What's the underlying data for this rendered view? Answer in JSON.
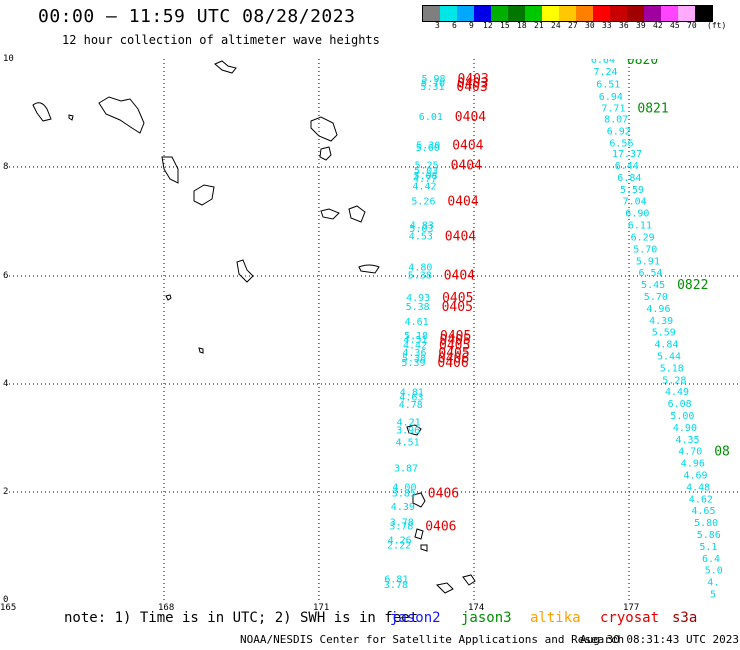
{
  "title": "00:00 – 11:59 UTC 08/28/2023",
  "subtitle": "12 hour collection of altimeter wave heights",
  "colorbar": {
    "unit": "(ft)",
    "labels": [
      "3",
      "6",
      "9",
      "12",
      "15",
      "18",
      "21",
      "24",
      "27",
      "30",
      "33",
      "36",
      "39",
      "42",
      "45",
      "70"
    ],
    "colors": [
      "#7f7f7f",
      "#00e5e5",
      "#00a8ff",
      "#0000e6",
      "#00b000",
      "#007800",
      "#00c800",
      "#ffff00",
      "#ffc800",
      "#ff7f00",
      "#ff0000",
      "#c80000",
      "#a00000",
      "#a000a0",
      "#ff44ff",
      "#ffaaff",
      "#000000"
    ]
  },
  "axes": {
    "y_ticks": [
      "10",
      "8",
      "6",
      "4",
      "2",
      "0"
    ],
    "x_ticks": [
      "165",
      "168",
      "171",
      "174",
      "177"
    ]
  },
  "note": {
    "prefix": "note: 1) Time is in UTC; 2) SWH is in feet",
    "satellites": [
      {
        "name": "jason2",
        "color": "#1515ff"
      },
      {
        "name": "jason3",
        "color": "#009000"
      },
      {
        "name": "altika",
        "color": "#ffa000"
      },
      {
        "name": "cryosat",
        "color": "#e00000"
      },
      {
        "name": "s3a",
        "color": "#a00000"
      }
    ]
  },
  "footer": {
    "credit": "NOAA/NESDIS Center for Satellite Applications and Research",
    "timestamp": "Aug 30 08:31:43 UTC 2023"
  },
  "chart_data": {
    "type": "scatter",
    "x_range": [
      165,
      179
    ],
    "y_range": [
      0,
      10
    ],
    "grid": true,
    "tracks": [
      {
        "satellite": "cryosat",
        "color": "#e00000",
        "points": [
          {
            "lon": 172.85,
            "lat": 9.65,
            "swh": "5.98",
            "time": "0403"
          },
          {
            "lon": 172.84,
            "lat": 9.57,
            "swh": "5.70",
            "time": "0403"
          },
          {
            "lon": 172.83,
            "lat": 9.5,
            "swh": "5.31",
            "time": "0403"
          },
          {
            "lon": 172.8,
            "lat": 8.95,
            "swh": "6.01",
            "time": "0404"
          },
          {
            "lon": 172.75,
            "lat": 8.42,
            "swh": "5.30",
            "time": "0404"
          },
          {
            "lon": 172.74,
            "lat": 8.37,
            "swh": "5.60"
          },
          {
            "lon": 172.72,
            "lat": 8.05,
            "swh": "5.25",
            "time": "0404"
          },
          {
            "lon": 172.71,
            "lat": 7.95,
            "swh": "5.03"
          },
          {
            "lon": 172.7,
            "lat": 7.86,
            "swh": "5.08"
          },
          {
            "lon": 172.69,
            "lat": 7.8,
            "swh": "4.77"
          },
          {
            "lon": 172.68,
            "lat": 7.66,
            "swh": "4.42"
          },
          {
            "lon": 172.66,
            "lat": 7.38,
            "swh": "5.26",
            "time": "0404"
          },
          {
            "lon": 172.63,
            "lat": 6.94,
            "swh": "4.83"
          },
          {
            "lon": 172.62,
            "lat": 6.88,
            "swh": "5.03"
          },
          {
            "lon": 172.61,
            "lat": 6.74,
            "swh": "4.53",
            "time": "0404"
          },
          {
            "lon": 172.6,
            "lat": 6.16,
            "swh": "4.80"
          },
          {
            "lon": 172.59,
            "lat": 6.02,
            "swh": "5.38",
            "time": "0404"
          },
          {
            "lon": 172.56,
            "lat": 5.6,
            "swh": "4.93",
            "time": "0405"
          },
          {
            "lon": 172.55,
            "lat": 5.43,
            "swh": "5.38",
            "time": "0405"
          },
          {
            "lon": 172.53,
            "lat": 5.16,
            "swh": "4.61"
          },
          {
            "lon": 172.52,
            "lat": 4.9,
            "swh": "5.18",
            "time": "0405"
          },
          {
            "lon": 172.51,
            "lat": 4.82,
            "swh": "4.51",
            "time": "0405"
          },
          {
            "lon": 172.5,
            "lat": 4.72,
            "swh": "4.42",
            "time": "0405"
          },
          {
            "lon": 172.49,
            "lat": 4.58,
            "swh": "4.36",
            "time": "0405"
          },
          {
            "lon": 172.48,
            "lat": 4.48,
            "swh": "5.38",
            "time": "0406"
          },
          {
            "lon": 172.47,
            "lat": 4.4,
            "swh": "5.39",
            "time": "0406"
          },
          {
            "lon": 172.44,
            "lat": 3.85,
            "swh": "4.81"
          },
          {
            "lon": 172.43,
            "lat": 3.76,
            "swh": "4.63"
          },
          {
            "lon": 172.42,
            "lat": 3.62,
            "swh": "4.78"
          },
          {
            "lon": 172.38,
            "lat": 3.3,
            "swh": "4.21"
          },
          {
            "lon": 172.37,
            "lat": 3.15,
            "swh": "3.96"
          },
          {
            "lon": 172.36,
            "lat": 2.93,
            "swh": "4.51"
          },
          {
            "lon": 172.33,
            "lat": 2.45,
            "swh": "3.87"
          },
          {
            "lon": 172.3,
            "lat": 2.1,
            "swh": "4.00"
          },
          {
            "lon": 172.29,
            "lat": 1.99,
            "swh": "3.85",
            "time": "0406"
          },
          {
            "lon": 172.27,
            "lat": 1.74,
            "swh": "4.39"
          },
          {
            "lon": 172.25,
            "lat": 1.45,
            "swh": "3.78"
          },
          {
            "lon": 172.24,
            "lat": 1.38,
            "swh": "3.78",
            "time": "0406"
          },
          {
            "lon": 172.21,
            "lat": 1.12,
            "swh": "4.26"
          },
          {
            "lon": 172.2,
            "lat": 1.03,
            "swh": "2.22"
          },
          {
            "lon": 172.15,
            "lat": 0.4,
            "swh": "6.81"
          },
          {
            "lon": 172.14,
            "lat": 0.3,
            "swh": "3.78"
          }
        ]
      },
      {
        "satellite": "jason3",
        "color": "#009000",
        "points": [
          {
            "lon": 176.05,
            "lat": 10.0,
            "swh": "6.64",
            "time": "0820"
          },
          {
            "lon": 176.1,
            "lat": 9.78,
            "swh": "7.24"
          },
          {
            "lon": 176.15,
            "lat": 9.55,
            "swh": "6.51"
          },
          {
            "lon": 176.2,
            "lat": 9.32,
            "swh": "6.94"
          },
          {
            "lon": 176.25,
            "lat": 9.1,
            "swh": "7.71",
            "time": "0821"
          },
          {
            "lon": 176.3,
            "lat": 8.9,
            "swh": "8.07"
          },
          {
            "lon": 176.35,
            "lat": 8.68,
            "swh": "6.92"
          },
          {
            "lon": 176.4,
            "lat": 8.46,
            "swh": "6.56"
          },
          {
            "lon": 176.45,
            "lat": 8.26,
            "swh": "17.37"
          },
          {
            "lon": 176.5,
            "lat": 8.04,
            "swh": "6.44"
          },
          {
            "lon": 176.55,
            "lat": 7.82,
            "swh": "6.84"
          },
          {
            "lon": 176.6,
            "lat": 7.6,
            "swh": "5.59"
          },
          {
            "lon": 176.65,
            "lat": 7.38,
            "swh": "7.04"
          },
          {
            "lon": 176.7,
            "lat": 7.16,
            "swh": "6.90"
          },
          {
            "lon": 176.75,
            "lat": 6.94,
            "swh": "6.11"
          },
          {
            "lon": 176.8,
            "lat": 6.72,
            "swh": "6.29"
          },
          {
            "lon": 176.85,
            "lat": 6.5,
            "swh": "5.70"
          },
          {
            "lon": 176.9,
            "lat": 6.28,
            "swh": "5.91"
          },
          {
            "lon": 176.95,
            "lat": 6.06,
            "swh": "6.54"
          },
          {
            "lon": 177.0,
            "lat": 5.84,
            "swh": "5.45",
            "time": "0822"
          },
          {
            "lon": 177.05,
            "lat": 5.62,
            "swh": "5.70"
          },
          {
            "lon": 177.1,
            "lat": 5.4,
            "swh": "4.96"
          },
          {
            "lon": 177.15,
            "lat": 5.18,
            "swh": "4.39"
          },
          {
            "lon": 177.2,
            "lat": 4.96,
            "swh": "5.59"
          },
          {
            "lon": 177.25,
            "lat": 4.74,
            "swh": "4.84"
          },
          {
            "lon": 177.3,
            "lat": 4.52,
            "swh": "5.44"
          },
          {
            "lon": 177.35,
            "lat": 4.3,
            "swh": "5.18"
          },
          {
            "lon": 177.4,
            "lat": 4.08,
            "swh": "5.28"
          },
          {
            "lon": 177.45,
            "lat": 3.86,
            "swh": "4.49"
          },
          {
            "lon": 177.5,
            "lat": 3.64,
            "swh": "6.08"
          },
          {
            "lon": 177.55,
            "lat": 3.42,
            "swh": "5.00"
          },
          {
            "lon": 177.6,
            "lat": 3.2,
            "swh": "4.90"
          },
          {
            "lon": 177.65,
            "lat": 2.98,
            "swh": "4.35"
          },
          {
            "lon": 177.7,
            "lat": 2.76,
            "swh": "4.70",
            "time": "08"
          },
          {
            "lon": 177.75,
            "lat": 2.54,
            "swh": "4.96"
          },
          {
            "lon": 177.8,
            "lat": 2.32,
            "swh": "4.69"
          },
          {
            "lon": 177.85,
            "lat": 2.1,
            "swh": "4.48"
          },
          {
            "lon": 177.9,
            "lat": 1.88,
            "swh": "4.62"
          },
          {
            "lon": 177.95,
            "lat": 1.66,
            "swh": "4.65"
          },
          {
            "lon": 178.0,
            "lat": 1.44,
            "swh": "5.80"
          },
          {
            "lon": 178.05,
            "lat": 1.22,
            "swh": "5.86"
          },
          {
            "lon": 178.1,
            "lat": 1.0,
            "swh": "5.1"
          },
          {
            "lon": 178.15,
            "lat": 0.78,
            "swh": "6.4"
          },
          {
            "lon": 178.2,
            "lat": 0.56,
            "swh": "5.0"
          },
          {
            "lon": 178.25,
            "lat": 0.34,
            "swh": "4."
          },
          {
            "lon": 178.3,
            "lat": 0.12,
            "swh": "5"
          }
        ]
      }
    ]
  }
}
